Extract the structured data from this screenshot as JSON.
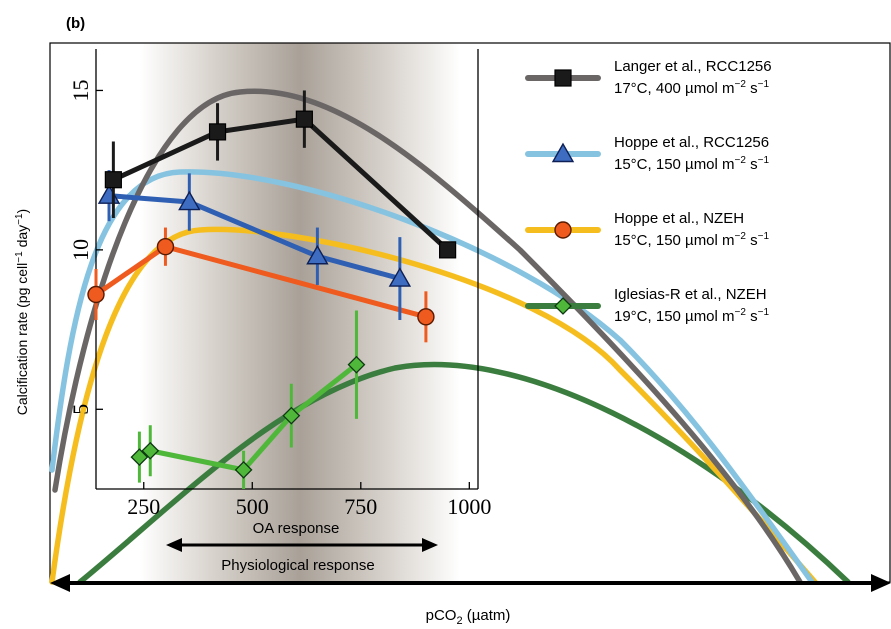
{
  "panel_label": "(b)",
  "xlabel_main": "pCO",
  "xlabel_sub": "2",
  "xlabel_unit": " (µatm)",
  "ylabel": {
    "pre": "Calcification rate (pg cell",
    "sup1": "−1",
    "mid": " day",
    "sup2": "−1",
    "post": ")"
  },
  "oa_label": "OA response",
  "phys_label": "Physiological response",
  "colors": {
    "langer": "#1a1a1a",
    "langer_curve": "#6b6666",
    "hoppe_rcc": "#2f5fb3",
    "hoppe_rcc_curve": "#86c3e0",
    "hoppe_nzeh": "#ef5a1e",
    "hoppe_nzeh_curve": "#f5be1e",
    "iglesias": "#4fb83a",
    "iglesias_curve": "#3b7d3e",
    "iglesias_marker": "#2f8f3a"
  },
  "chart_data": {
    "type": "line",
    "inset_axes": {
      "xticks": [
        250,
        500,
        750,
        1000
      ],
      "xlim": [
        140,
        1020
      ],
      "yticks": [
        5,
        10,
        15
      ],
      "ylim": [
        2.5,
        16.3
      ],
      "grid": false
    },
    "legend": [
      {
        "key": "langer",
        "line1": "Langer et al., RCC1256",
        "line2_pre": "17°C, 400 µmol m",
        "sup1": "−2",
        "mid": " s",
        "sup2": "−1",
        "marker": "square"
      },
      {
        "key": "hoppe_rcc",
        "line1": "Hoppe et al., RCC1256",
        "line2_pre": "15°C, 150 µmol m",
        "sup1": "−2",
        "mid": " s",
        "sup2": "−1",
        "marker": "triangle"
      },
      {
        "key": "hoppe_nzeh",
        "line1": "Hoppe et al., NZEH",
        "line2_pre": "15°C, 150 µmol m",
        "sup1": "−2",
        "mid": " s",
        "sup2": "−1",
        "marker": "circle"
      },
      {
        "key": "iglesias",
        "line1": "Iglesias-R et al., NZEH",
        "line2_pre": "19°C, 150 µmol m",
        "sup1": "−2",
        "mid": " s",
        "sup2": "−1",
        "marker": "diamond"
      }
    ],
    "series": [
      {
        "key": "langer",
        "marker": "square",
        "x": [
          180,
          420,
          620,
          950
        ],
        "y": [
          12.2,
          13.7,
          14.1,
          10.0
        ],
        "err": [
          1.2,
          0.9,
          0.9,
          0.0
        ]
      },
      {
        "key": "hoppe_rcc",
        "marker": "triangle",
        "x": [
          170,
          355,
          650,
          840
        ],
        "y": [
          11.7,
          11.5,
          9.8,
          9.1
        ],
        "err": [
          0.8,
          0.9,
          0.9,
          1.3
        ]
      },
      {
        "key": "hoppe_nzeh",
        "marker": "circle",
        "x": [
          140,
          300,
          900
        ],
        "y": [
          8.6,
          10.1,
          7.9
        ],
        "err": [
          0.8,
          0.6,
          0.8
        ]
      },
      {
        "key": "iglesias",
        "marker": "diamond",
        "x": [
          240,
          265,
          480,
          590,
          740
        ],
        "y": [
          3.5,
          3.7,
          3.1,
          4.8,
          6.4
        ],
        "err": [
          0.8,
          0.8,
          0.6,
          1.0,
          1.7
        ]
      }
    ]
  }
}
